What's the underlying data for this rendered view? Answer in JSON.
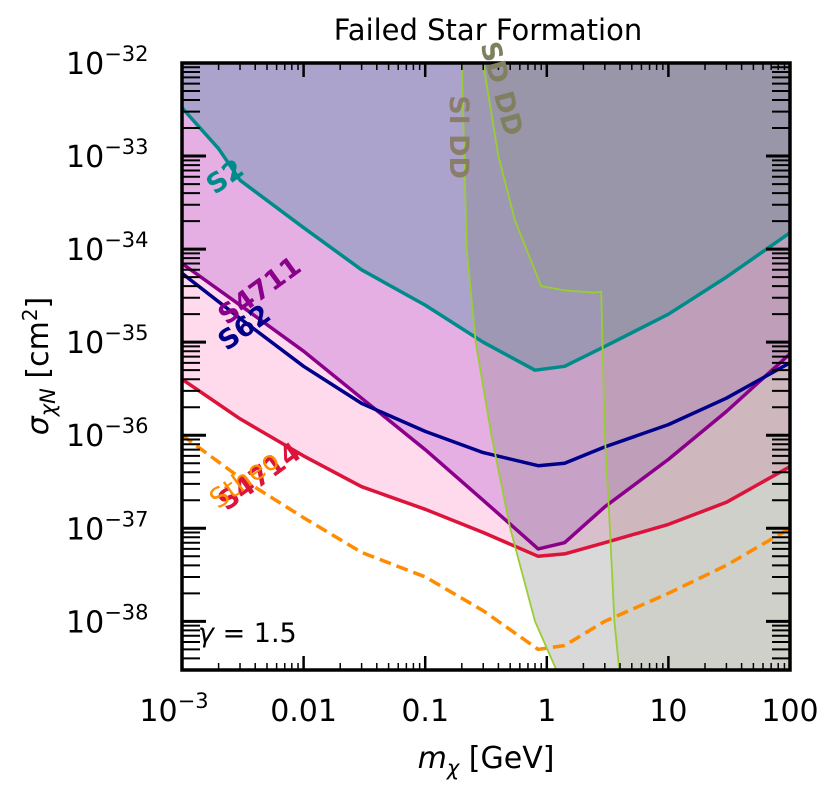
{
  "chart_data": {
    "type": "line",
    "title": "Failed Star Formation",
    "xlabel": "m",
    "xlabel_sub": "χ",
    "xlabel_unit": " [GeV]",
    "ylabel": "σ",
    "ylabel_sub": "χN",
    "ylabel_unit": " [cm",
    "ylabel_unit_sup": "2",
    "ylabel_unit_close": "]",
    "xscale": "log",
    "yscale": "log",
    "xlim": [
      0.001,
      100
    ],
    "ylim": [
      3e-39,
      1e-32
    ],
    "x_ticks": [
      {
        "value": 0.001,
        "label": "10",
        "sup": "−3"
      },
      {
        "value": 0.01,
        "label": "0.01",
        "sup": ""
      },
      {
        "value": 0.1,
        "label": "0.1",
        "sup": ""
      },
      {
        "value": 1,
        "label": "1",
        "sup": ""
      },
      {
        "value": 10,
        "label": "10",
        "sup": ""
      },
      {
        "value": 100,
        "label": "100",
        "sup": ""
      }
    ],
    "y_ticks": [
      {
        "value": 1e-32,
        "label": "10",
        "sup": "−32"
      },
      {
        "value": 1e-33,
        "label": "10",
        "sup": "−33"
      },
      {
        "value": 1e-34,
        "label": "10",
        "sup": "−34"
      },
      {
        "value": 1e-35,
        "label": "10",
        "sup": "−35"
      },
      {
        "value": 1e-36,
        "label": "10",
        "sup": "−36"
      },
      {
        "value": 1e-37,
        "label": "10",
        "sup": "−37"
      },
      {
        "value": 1e-38,
        "label": "10",
        "sup": "−38"
      }
    ],
    "annotation": {
      "prefix": "γ",
      "text": " =  1.5"
    },
    "series": [
      {
        "name": "S2",
        "color": "#008b8b",
        "fill": "#008080",
        "fill_opacity": 0.25,
        "style": "solid",
        "x": [
          0.001,
          0.002,
          0.003,
          0.01,
          0.03,
          0.1,
          0.3,
          0.8,
          1.4,
          3,
          10,
          30,
          100
        ],
        "y": [
          3.3e-33,
          1.2e-33,
          5.5e-34,
          1.7e-34,
          6e-35,
          2.5e-35,
          1e-35,
          5e-36,
          5.5e-36,
          9e-36,
          2e-35,
          5e-35,
          1.5e-34
        ]
      },
      {
        "name": "S4711",
        "color": "#8b008b",
        "fill": "#9932cc",
        "fill_opacity": 0.25,
        "style": "solid",
        "x": [
          0.001,
          0.003,
          0.01,
          0.03,
          0.1,
          0.3,
          0.85,
          1.4,
          3,
          10,
          30,
          100
        ],
        "y": [
          7e-35,
          2.5e-35,
          8e-36,
          2.5e-36,
          7e-37,
          2e-37,
          6e-38,
          7e-38,
          1.7e-37,
          5.5e-37,
          1.8e-36,
          7.5e-36
        ]
      },
      {
        "name": "S62",
        "color": "#00008b",
        "fill": "#00008b",
        "fill_opacity": 0,
        "style": "solid",
        "x": [
          0.001,
          0.003,
          0.01,
          0.03,
          0.1,
          0.3,
          0.85,
          1.4,
          3,
          10,
          30,
          100
        ],
        "y": [
          5.5e-35,
          1.8e-35,
          5.5e-36,
          2.2e-36,
          1.1e-36,
          6.5e-37,
          4.7e-37,
          5e-37,
          7.5e-37,
          1.3e-36,
          2.5e-36,
          6e-36
        ]
      },
      {
        "name": "S4714",
        "color": "#dc143c",
        "fill": "#ff69b4",
        "fill_opacity": 0.25,
        "style": "solid",
        "x": [
          0.001,
          0.003,
          0.01,
          0.03,
          0.1,
          0.3,
          0.85,
          1.4,
          3,
          10,
          30,
          100
        ],
        "y": [
          4e-36,
          1.5e-36,
          6e-37,
          2.8e-37,
          1.6e-37,
          9e-38,
          5e-38,
          5.3e-38,
          7e-38,
          1.1e-37,
          1.9e-37,
          4.6e-37
        ]
      },
      {
        "name": "Stheo",
        "color": "#ff8c00",
        "fill": "none",
        "fill_opacity": 0,
        "style": "dashed",
        "x": [
          0.001,
          0.003,
          0.01,
          0.03,
          0.1,
          0.3,
          0.85,
          1.4,
          3,
          10,
          30,
          100
        ],
        "y": [
          1e-36,
          3.5e-37,
          1.3e-37,
          5.5e-38,
          3e-38,
          1.3e-38,
          5e-39,
          5.5e-39,
          1e-38,
          2e-38,
          4e-38,
          1e-37
        ]
      },
      {
        "name": "SI DD",
        "color": "#8b7d6b",
        "line_color": "#9acd32",
        "fill": "#808080",
        "fill_opacity": 0.3,
        "style": "solid",
        "x": [
          0.2,
          0.22,
          0.26,
          0.35,
          0.5,
          0.8,
          1.2,
          1.6
        ],
        "y": [
          1e-32,
          1e-34,
          1e-35,
          1e-36,
          1e-37,
          1e-38,
          3e-39,
          2.5e-39
        ]
      },
      {
        "name": "SD DD",
        "color": "#808060",
        "line_color": "#9acd32",
        "fill": "#6b8e23",
        "fill_opacity": 0.1,
        "style": "solid",
        "x": [
          0.3,
          0.4,
          0.55,
          0.9,
          1.4,
          2.5,
          2.8,
          3.0,
          3.3,
          3.6,
          4.0
        ],
        "y": [
          1e-32,
          1e-33,
          2e-34,
          4e-35,
          3.6e-35,
          3.4e-35,
          3.5e-35,
          1e-36,
          1e-37,
          1e-38,
          2.5e-39
        ]
      }
    ]
  }
}
